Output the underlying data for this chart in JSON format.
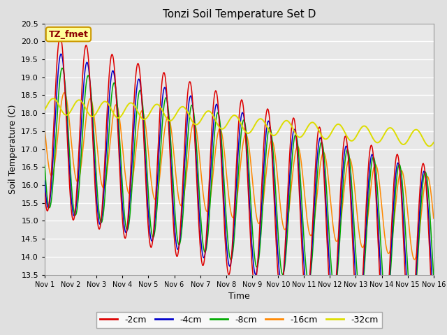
{
  "title": "Tonzi Soil Temperature Set D",
  "xlabel": "Time",
  "ylabel": "Soil Temperature (C)",
  "ylim": [
    13.5,
    20.5
  ],
  "yticks": [
    13.5,
    14.0,
    14.5,
    15.0,
    15.5,
    16.0,
    16.5,
    17.0,
    17.5,
    18.0,
    18.5,
    19.0,
    19.5,
    20.0,
    20.5
  ],
  "xtick_labels": [
    "Nov 1",
    "Nov 2",
    "Nov 3",
    "Nov 4",
    "Nov 5",
    "Nov 6",
    "Nov 7",
    "Nov 8",
    "Nov 9",
    "Nov 10",
    "Nov 11",
    "Nov 12",
    "Nov 13",
    "Nov 14",
    "Nov 15",
    "Nov 16"
  ],
  "legend_labels": [
    "-2cm",
    "-4cm",
    "-8cm",
    "-16cm",
    "-32cm"
  ],
  "line_colors": [
    "#dd0000",
    "#0000cc",
    "#00aa00",
    "#ff8800",
    "#dddd00"
  ],
  "bg_color": "#e0e0e0",
  "plot_bg_color": "#e8e8e8",
  "label_box_text": "TZ_fmet",
  "label_box_bg": "#ffff99",
  "label_box_border": "#cc9900",
  "grid_color": "#ffffff",
  "title_fontsize": 11,
  "axis_fontsize": 9,
  "tick_fontsize": 8,
  "legend_fontsize": 9
}
